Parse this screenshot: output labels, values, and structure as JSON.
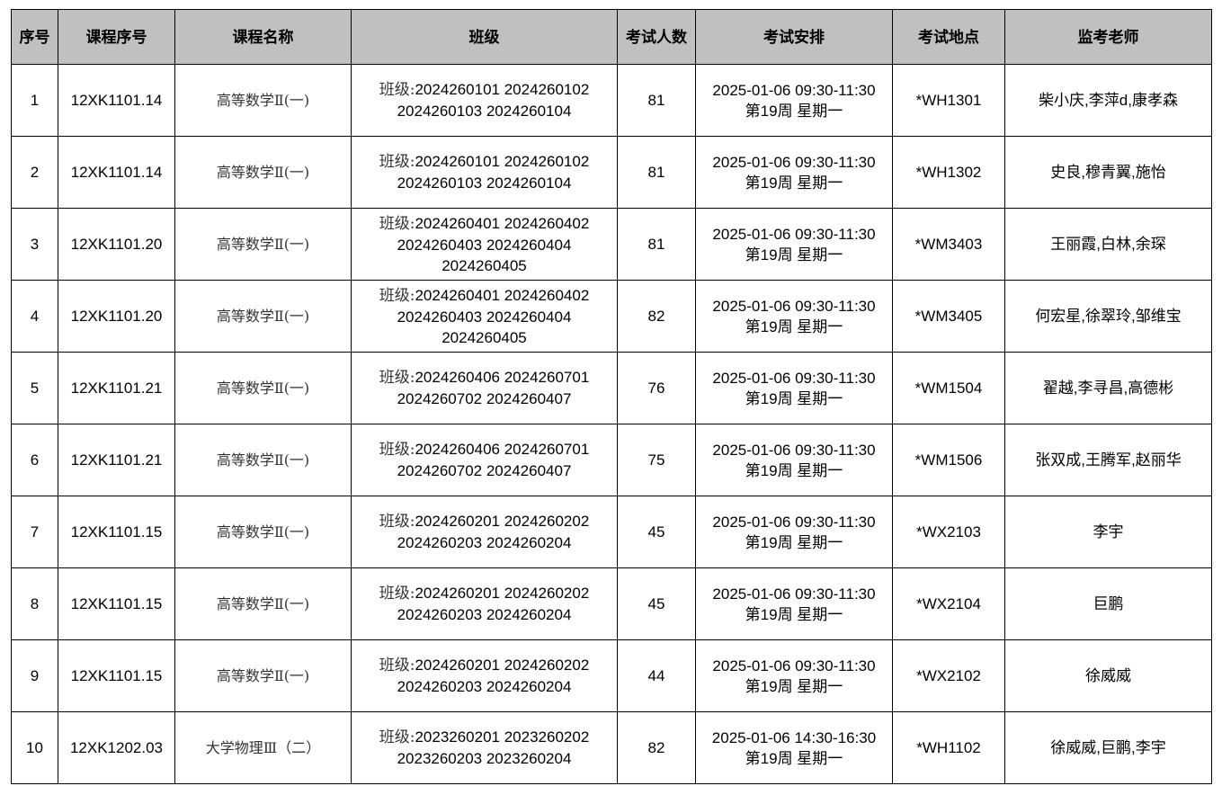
{
  "headers": [
    "序号",
    "课程序号",
    "课程名称",
    "班级",
    "考试人数",
    "考试安排",
    "考试地点",
    "监考老师"
  ],
  "class_prefix": "班级:",
  "rows": [
    {
      "no": "1",
      "code": "12XK1101.14",
      "name": "高等数学Ⅱ(一)",
      "classes": [
        "2024260101 2024260102",
        "2024260103 2024260104"
      ],
      "count": "81",
      "time": "2025-01-06 09:30-11:30",
      "week": "第19周 星期一",
      "room": "*WH1301",
      "teachers": "柴小庆,李萍d,康孝森"
    },
    {
      "no": "2",
      "code": "12XK1101.14",
      "name": "高等数学Ⅱ(一)",
      "classes": [
        "2024260101 2024260102",
        "2024260103 2024260104"
      ],
      "count": "81",
      "time": "2025-01-06 09:30-11:30",
      "week": "第19周 星期一",
      "room": "*WH1302",
      "teachers": "史良,穆青翼,施怡"
    },
    {
      "no": "3",
      "code": "12XK1101.20",
      "name": "高等数学Ⅱ(一)",
      "classes": [
        "2024260401 2024260402",
        "2024260403 2024260404",
        "2024260405"
      ],
      "count": "81",
      "time": "2025-01-06 09:30-11:30",
      "week": "第19周 星期一",
      "room": "*WM3403",
      "teachers": "王丽霞,白林,余琛"
    },
    {
      "no": "4",
      "code": "12XK1101.20",
      "name": "高等数学Ⅱ(一)",
      "classes": [
        "2024260401 2024260402",
        "2024260403 2024260404",
        "2024260405"
      ],
      "count": "82",
      "time": "2025-01-06 09:30-11:30",
      "week": "第19周 星期一",
      "room": "*WM3405",
      "teachers": "何宏星,徐翠玲,邹维宝"
    },
    {
      "no": "5",
      "code": "12XK1101.21",
      "name": "高等数学Ⅱ(一)",
      "classes": [
        "2024260406 2024260701",
        "2024260702 2024260407"
      ],
      "count": "76",
      "time": "2025-01-06 09:30-11:30",
      "week": "第19周 星期一",
      "room": "*WM1504",
      "teachers": "翟越,李寻昌,高德彬"
    },
    {
      "no": "6",
      "code": "12XK1101.21",
      "name": "高等数学Ⅱ(一)",
      "classes": [
        "2024260406 2024260701",
        "2024260702 2024260407"
      ],
      "count": "75",
      "time": "2025-01-06 09:30-11:30",
      "week": "第19周 星期一",
      "room": "*WM1506",
      "teachers": "张双成,王腾军,赵丽华"
    },
    {
      "no": "7",
      "code": "12XK1101.15",
      "name": "高等数学Ⅱ(一)",
      "classes": [
        "2024260201 2024260202",
        "2024260203 2024260204"
      ],
      "count": "45",
      "time": "2025-01-06 09:30-11:30",
      "week": "第19周 星期一",
      "room": "*WX2103",
      "teachers": "李宇"
    },
    {
      "no": "8",
      "code": "12XK1101.15",
      "name": "高等数学Ⅱ(一)",
      "classes": [
        "2024260201 2024260202",
        "2024260203 2024260204"
      ],
      "count": "45",
      "time": "2025-01-06 09:30-11:30",
      "week": "第19周 星期一",
      "room": "*WX2104",
      "teachers": "巨鹏"
    },
    {
      "no": "9",
      "code": "12XK1101.15",
      "name": "高等数学Ⅱ(一)",
      "classes": [
        "2024260201 2024260202",
        "2024260203 2024260204"
      ],
      "count": "44",
      "time": "2025-01-06 09:30-11:30",
      "week": "第19周 星期一",
      "room": "*WX2102",
      "teachers": "徐威威"
    },
    {
      "no": "10",
      "code": "12XK1202.03",
      "name": "大学物理Ⅲ（二）",
      "classes": [
        "2023260201 2023260202",
        "2023260203 2023260204"
      ],
      "count": "82",
      "time": "2025-01-06 14:30-16:30",
      "week": "第19周 星期一",
      "room": "*WH1102",
      "teachers": "徐威威,巨鹏,李宇"
    }
  ],
  "colors": {
    "header_bg": "#c0c0c0",
    "border": "#000000"
  }
}
